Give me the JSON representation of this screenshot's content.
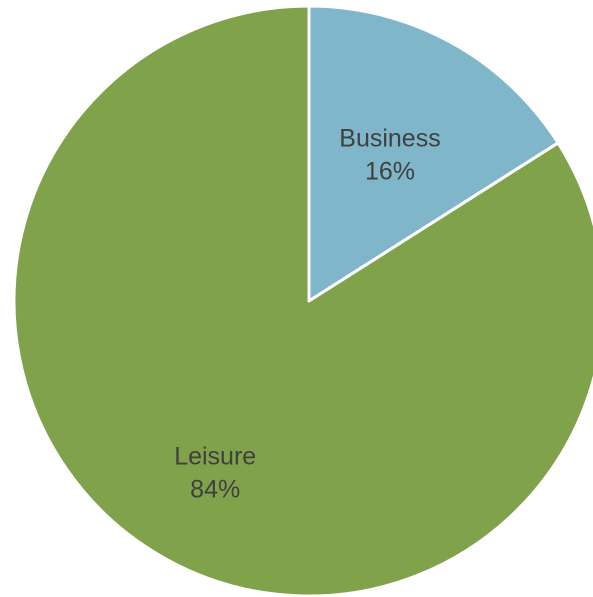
{
  "chart_data": {
    "type": "pie",
    "title": "",
    "start_angle_deg": 0,
    "direction": "clockwise",
    "slices": [
      {
        "label": "Business",
        "value": 16,
        "display": "16%",
        "color": "#7FB6C9"
      },
      {
        "label": "Leisure",
        "value": 84,
        "display": "84%",
        "color": "#7FA24B"
      }
    ],
    "slice_border_color": "#FFFFFF",
    "label_color": "#404040",
    "legend": "none"
  }
}
